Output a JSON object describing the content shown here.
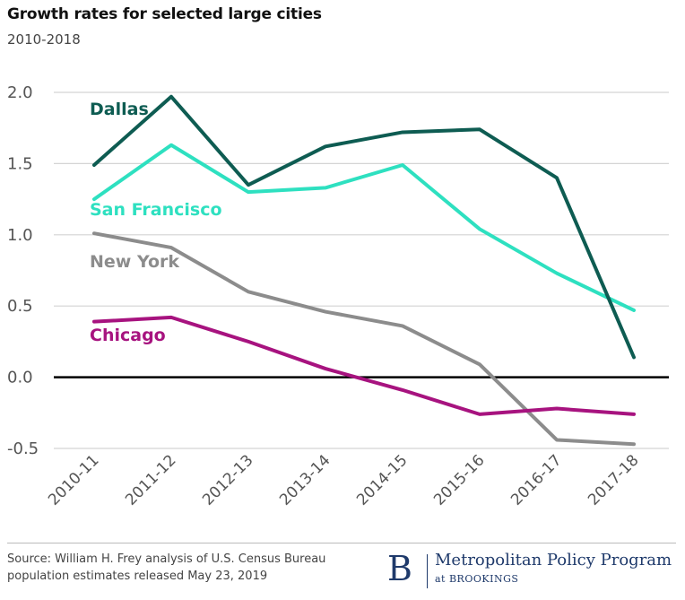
{
  "header": {
    "title": "Growth rates for selected large cities",
    "subtitle": "2010-2018"
  },
  "chart_data": {
    "type": "line",
    "title": "Growth rates for selected large cities",
    "subtitle": "2010-2018",
    "categories": [
      "2010-11",
      "2011-12",
      "2012-13",
      "2013-14",
      "2014-15",
      "2015-16",
      "2016-17",
      "2017-18"
    ],
    "yticks": [
      "2.0",
      "1.5",
      "1.0",
      "0.5",
      "0.0",
      "-0.5"
    ],
    "ylim": [
      -0.5,
      2.0
    ],
    "grid": true,
    "legend": "inline labels",
    "series": [
      {
        "name": "Dallas",
        "color": "#0e5c52",
        "values": [
          1.49,
          1.97,
          1.35,
          1.62,
          1.72,
          1.74,
          1.4,
          0.14
        ]
      },
      {
        "name": "San Francisco",
        "color": "#2ee0c0",
        "values": [
          1.25,
          1.63,
          1.3,
          1.33,
          1.49,
          1.04,
          0.73,
          0.47
        ]
      },
      {
        "name": "New York",
        "color": "#8c8c8c",
        "values": [
          1.01,
          0.91,
          0.6,
          0.46,
          0.36,
          0.09,
          -0.44,
          -0.47
        ]
      },
      {
        "name": "Chicago",
        "color": "#a7137f",
        "values": [
          0.39,
          0.42,
          0.25,
          0.06,
          -0.09,
          -0.26,
          -0.22,
          -0.26
        ]
      }
    ]
  },
  "footer": {
    "source_line1": "Source: William H. Frey analysis of U.S. Census Bureau",
    "source_line2": "population estimates released May 23, 2019"
  },
  "brand": {
    "logo": "B",
    "name": "Metropolitan Policy Program",
    "sub": "at BROOKINGS",
    "color": "#1f3a6b"
  }
}
